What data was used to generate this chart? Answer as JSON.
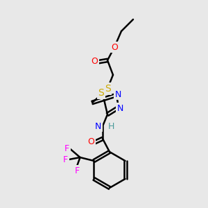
{
  "background_color": "#e8e8e8",
  "atom_colors": {
    "C": "#000000",
    "H": "#4a9a9a",
    "O": "#ff0000",
    "N": "#0000ff",
    "S": "#ccaa00",
    "F": "#ff00ff"
  },
  "bond_color": "#000000",
  "figsize": [
    3.0,
    3.0
  ],
  "dpi": 100
}
